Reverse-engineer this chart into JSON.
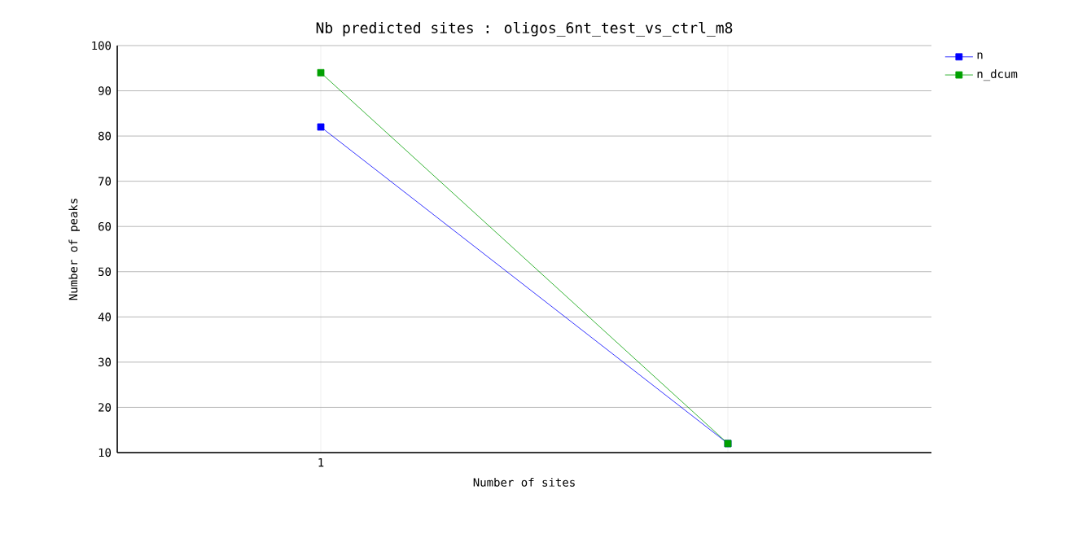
{
  "chart_data": {
    "type": "line",
    "title": "Nb predicted sites : oligos_6nt_test_vs_ctrl_m8",
    "xlabel": "Number of sites",
    "ylabel": "Number of peaks",
    "categories": [
      "1",
      null
    ],
    "series": [
      {
        "name": "n",
        "color": "#0000ff",
        "values": [
          82,
          12
        ]
      },
      {
        "name": "n_dcum",
        "color": "#00a000",
        "values": [
          94,
          12
        ]
      }
    ],
    "ylim": [
      10,
      100
    ],
    "yticks": [
      10,
      20,
      30,
      40,
      50,
      60,
      70,
      80,
      90,
      100
    ],
    "grid": "y",
    "legend": "top right",
    "marker": "square"
  }
}
